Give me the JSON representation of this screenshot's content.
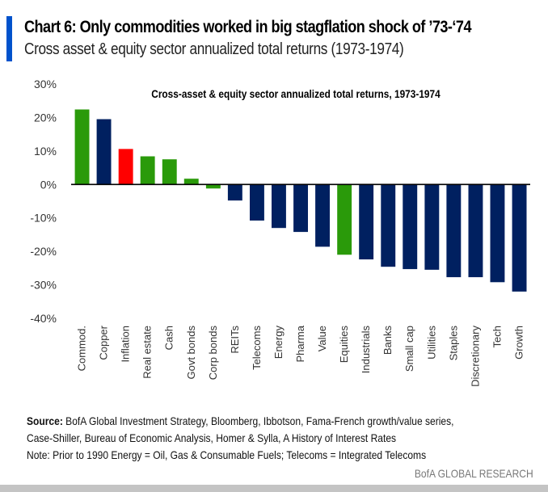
{
  "header": {
    "title": "Chart 6: Only commodities worked in big stagflation shock of ’73-‘74",
    "subtitle": "Cross asset & equity sector annualized total returns (1973-1974)"
  },
  "chart_data": {
    "type": "bar",
    "title": "Cross-asset & equity sector annualized total returns, 1973-1974",
    "xlabel": "",
    "ylabel": "",
    "ylim": [
      -40,
      30
    ],
    "yticks": [
      30,
      20,
      10,
      0,
      -10,
      -20,
      -30,
      -40
    ],
    "ytick_labels": [
      "30%",
      "20%",
      "10%",
      "0%",
      "-10%",
      "-20%",
      "-30%",
      "-40%"
    ],
    "grid": false,
    "legend": "none",
    "categories": [
      "Commod.",
      "Copper",
      "Inflation",
      "Real estate",
      "Cash",
      "Govt bonds",
      "Corp bonds",
      "REITs",
      "Telecoms",
      "Energy",
      "Pharma",
      "Value",
      "Equities",
      "Industrials",
      "Banks",
      "Small cap",
      "Utilities",
      "Staples",
      "Discretionary",
      "Tech",
      "Growth"
    ],
    "values": [
      22.4,
      19.5,
      10.6,
      8.4,
      7.5,
      1.7,
      -1.2,
      -4.8,
      -10.8,
      -13.0,
      -14.2,
      -18.6,
      -21.0,
      -22.4,
      -24.6,
      -25.3,
      -25.5,
      -27.7,
      -27.7,
      -29.2,
      -32.0
    ],
    "colors": [
      "#2a9a0a",
      "#002060",
      "#ff0000",
      "#2a9a0a",
      "#2a9a0a",
      "#2a9a0a",
      "#2a9a0a",
      "#002060",
      "#002060",
      "#002060",
      "#002060",
      "#002060",
      "#2a9a0a",
      "#002060",
      "#002060",
      "#002060",
      "#002060",
      "#002060",
      "#002060",
      "#002060",
      "#002060"
    ]
  },
  "footer": {
    "source_label": "Source:",
    "source_text": " BofA Global Investment Strategy, Bloomberg, Ibbotson,  Fama-French growth/value series,",
    "source_line2": "Case-Shiller, Bureau of Economic  Analysis, Homer & Sylla, A History of Interest Rates",
    "note": "Note: Prior to 1990  Energy = Oil, Gas & Consumable  Fuels; Telecoms  = Integrated Telecoms",
    "brand": "BofA GLOBAL RESEARCH"
  },
  "colors": {
    "accent": "#0052cc",
    "navy": "#002060",
    "green": "#2a9a0a",
    "red": "#ff0000"
  }
}
